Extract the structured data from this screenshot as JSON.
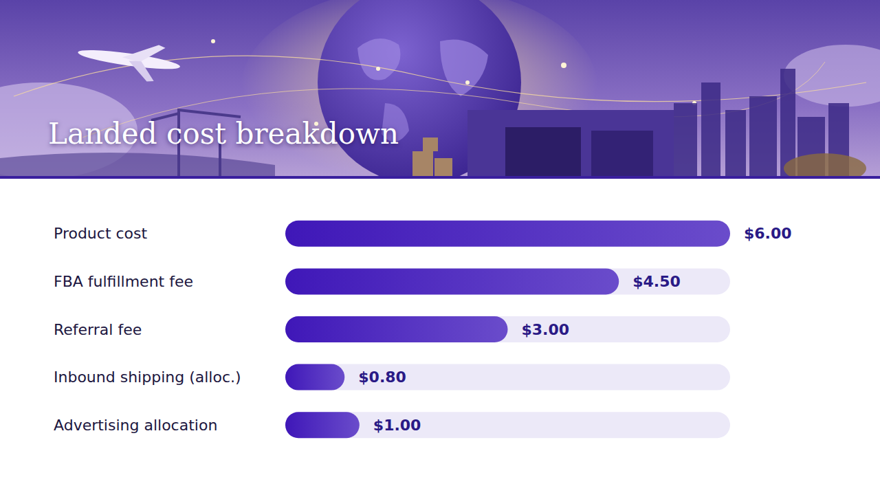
{
  "chart_data": {
    "type": "bar",
    "title": "Landed cost breakdown",
    "orientation": "horizontal",
    "categories": [
      "Product cost",
      "FBA fulfillment fee",
      "Referral fee",
      "Inbound shipping (alloc.)",
      "Advertising allocation"
    ],
    "values": [
      6.0,
      4.5,
      3.0,
      0.8,
      1.0
    ],
    "value_labels": [
      "$6.00",
      "$4.50",
      "$3.00",
      "$0.80",
      "$1.00"
    ],
    "color": "#3f17b8",
    "xlim": [
      0,
      6
    ],
    "data_labels": true,
    "tick_labels": "y",
    "grid": false
  }
}
